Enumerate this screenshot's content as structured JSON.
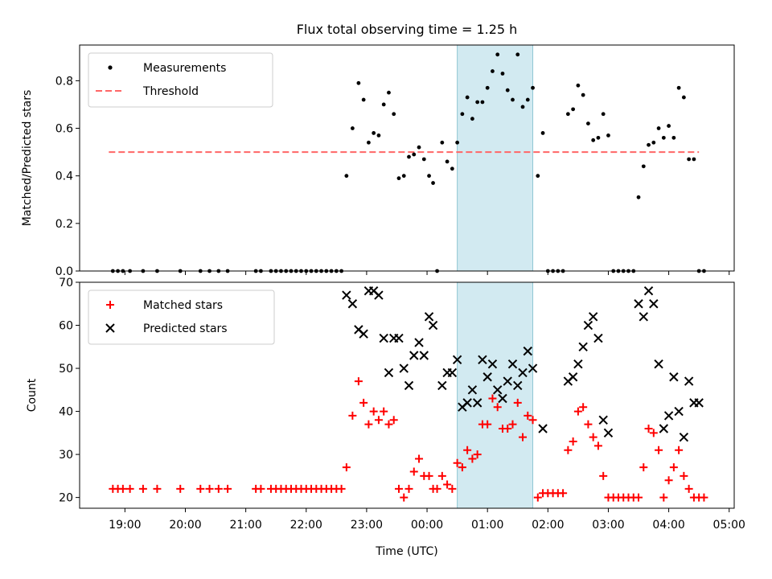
{
  "title": "Flux total observing time = 1.25 h",
  "xlabel": "Time (UTC)",
  "colors": {
    "measurement": "#000000",
    "threshold": "#ff6666",
    "matched": "#ff0000",
    "predicted": "#000000",
    "span": "#add8e6"
  },
  "chart_data": [
    {
      "type": "scatter",
      "panel": "top",
      "ylabel": "Matched/Predicted stars",
      "ylim": [
        0,
        0.95
      ],
      "yticks": [
        0.0,
        0.2,
        0.4,
        0.6,
        0.8
      ],
      "ytick_labels": [
        "0.0",
        "0.2",
        "0.4",
        "0.6",
        "0.8"
      ],
      "legend_position": "upper-left",
      "legend": [
        "Measurements",
        "Threshold"
      ],
      "threshold": {
        "name": "Threshold",
        "y": 0.5,
        "x_start": "18:44",
        "x_end": "04:30"
      },
      "shaded_span": {
        "start": "00:30",
        "end": "01:45"
      },
      "series": [
        {
          "name": "Measurements",
          "x": [
            "18:48",
            "18:53",
            "18:58",
            "19:05",
            "19:18",
            "19:32",
            "19:55",
            "20:15",
            "20:24",
            "20:33",
            "20:42",
            "21:10",
            "21:15",
            "21:25",
            "21:30",
            "21:35",
            "21:40",
            "21:45",
            "21:50",
            "21:55",
            "22:00",
            "22:05",
            "22:10",
            "22:15",
            "22:20",
            "22:25",
            "22:30",
            "22:35",
            "22:40",
            "22:46",
            "22:52",
            "22:57",
            "23:02",
            "23:07",
            "23:12",
            "23:17",
            "23:22",
            "23:27",
            "23:32",
            "23:37",
            "23:42",
            "23:47",
            "23:52",
            "23:57",
            "00:02",
            "00:06",
            "00:10",
            "00:15",
            "00:20",
            "00:25",
            "00:30",
            "00:35",
            "00:40",
            "00:45",
            "00:50",
            "00:55",
            "01:00",
            "01:05",
            "01:10",
            "01:15",
            "01:20",
            "01:25",
            "01:30",
            "01:35",
            "01:40",
            "01:45",
            "01:50",
            "01:55",
            "02:00",
            "02:05",
            "02:10",
            "02:15",
            "02:20",
            "02:25",
            "02:30",
            "02:35",
            "02:40",
            "02:45",
            "02:50",
            "02:55",
            "03:00",
            "03:05",
            "03:10",
            "03:15",
            "03:20",
            "03:25",
            "03:30",
            "03:35",
            "03:40",
            "03:45",
            "03:50",
            "03:55",
            "04:00",
            "04:05",
            "04:10",
            "04:15",
            "04:20",
            "04:25",
            "04:30",
            "04:35"
          ],
          "y": [
            0,
            0,
            0,
            0,
            0,
            0,
            0,
            0,
            0,
            0,
            0,
            0,
            0,
            0,
            0,
            0,
            0,
            0,
            0,
            0,
            0,
            0,
            0,
            0,
            0,
            0,
            0,
            0,
            0.4,
            0.6,
            0.79,
            0.72,
            0.54,
            0.58,
            0.57,
            0.7,
            0.75,
            0.66,
            0.39,
            0.4,
            0.48,
            0.49,
            0.52,
            0.47,
            0.4,
            0.37,
            0.0,
            0.54,
            0.46,
            0.43,
            0.54,
            0.66,
            0.73,
            0.64,
            0.71,
            0.71,
            0.77,
            0.84,
            0.91,
            0.83,
            0.76,
            0.72,
            0.91,
            0.69,
            0.72,
            0.77,
            0.4,
            0.58,
            0,
            0,
            0,
            0,
            0.66,
            0.68,
            0.78,
            0.74,
            0.62,
            0.55,
            0.56,
            0.66,
            0.57,
            0,
            0,
            0,
            0,
            0,
            0.31,
            0.44,
            0.53,
            0.54,
            0.6,
            0.56,
            0.61,
            0.56,
            0.77,
            0.73,
            0.47,
            0.47,
            0,
            0
          ]
        }
      ]
    },
    {
      "type": "scatter",
      "panel": "bottom",
      "ylabel": "Count",
      "ylim": [
        17.5,
        70
      ],
      "yticks": [
        20,
        30,
        40,
        50,
        60,
        70
      ],
      "ytick_labels": [
        "20",
        "30",
        "40",
        "50",
        "60",
        "70"
      ],
      "xlim": [
        "18:15",
        "05:05"
      ],
      "xticks": [
        "19:00",
        "20:00",
        "21:00",
        "22:00",
        "23:00",
        "00:00",
        "01:00",
        "02:00",
        "03:00",
        "04:00",
        "05:00"
      ],
      "legend_position": "upper-left",
      "legend": [
        "Matched stars",
        "Predicted stars"
      ],
      "shaded_span": {
        "start": "00:30",
        "end": "01:45"
      },
      "series": [
        {
          "name": "Matched stars",
          "marker": "+",
          "x": [
            "18:48",
            "18:53",
            "18:58",
            "19:05",
            "19:18",
            "19:32",
            "19:55",
            "20:15",
            "20:24",
            "20:33",
            "20:42",
            "21:10",
            "21:15",
            "21:25",
            "21:30",
            "21:35",
            "21:40",
            "21:45",
            "21:50",
            "21:55",
            "22:00",
            "22:05",
            "22:10",
            "22:15",
            "22:20",
            "22:25",
            "22:30",
            "22:35",
            "22:40",
            "22:46",
            "22:52",
            "22:57",
            "23:02",
            "23:07",
            "23:12",
            "23:17",
            "23:22",
            "23:27",
            "23:32",
            "23:37",
            "23:42",
            "23:47",
            "23:52",
            "23:57",
            "00:02",
            "00:06",
            "00:10",
            "00:15",
            "00:20",
            "00:25",
            "00:30",
            "00:35",
            "00:40",
            "00:45",
            "00:50",
            "00:55",
            "01:00",
            "01:05",
            "01:10",
            "01:15",
            "01:20",
            "01:25",
            "01:30",
            "01:35",
            "01:40",
            "01:45",
            "01:50",
            "01:55",
            "02:00",
            "02:05",
            "02:10",
            "02:15",
            "02:20",
            "02:25",
            "02:30",
            "02:35",
            "02:40",
            "02:45",
            "02:50",
            "02:55",
            "03:00",
            "03:05",
            "03:10",
            "03:15",
            "03:20",
            "03:25",
            "03:30",
            "03:35",
            "03:40",
            "03:45",
            "03:50",
            "03:55",
            "04:00",
            "04:05",
            "04:10",
            "04:15",
            "04:20",
            "04:25",
            "04:30",
            "04:35"
          ],
          "y": [
            22,
            22,
            22,
            22,
            22,
            22,
            22,
            22,
            22,
            22,
            22,
            22,
            22,
            22,
            22,
            22,
            22,
            22,
            22,
            22,
            22,
            22,
            22,
            22,
            22,
            22,
            22,
            22,
            27,
            39,
            47,
            42,
            37,
            40,
            38,
            40,
            37,
            38,
            22,
            20,
            22,
            26,
            29,
            25,
            25,
            22,
            22,
            25,
            23,
            22,
            28,
            27,
            31,
            29,
            30,
            37,
            37,
            43,
            41,
            36,
            36,
            37,
            42,
            34,
            39,
            38,
            20,
            21,
            21,
            21,
            21,
            21,
            31,
            33,
            40,
            41,
            37,
            34,
            32,
            25,
            20,
            20,
            20,
            20,
            20,
            20,
            20,
            27,
            36,
            35,
            31,
            20,
            24,
            27,
            31,
            25,
            22,
            20,
            20,
            20
          ]
        },
        {
          "name": "Predicted stars",
          "marker": "x",
          "x": [
            "22:40",
            "22:46",
            "22:52",
            "22:57",
            "23:02",
            "23:07",
            "23:12",
            "23:17",
            "23:22",
            "23:27",
            "23:32",
            "23:37",
            "23:42",
            "23:47",
            "23:52",
            "23:57",
            "00:02",
            "00:06",
            "00:15",
            "00:20",
            "00:25",
            "00:30",
            "00:35",
            "00:40",
            "00:45",
            "00:50",
            "00:55",
            "01:00",
            "01:05",
            "01:10",
            "01:15",
            "01:20",
            "01:25",
            "01:30",
            "01:35",
            "01:40",
            "01:45",
            "01:55",
            "02:20",
            "02:25",
            "02:30",
            "02:35",
            "02:40",
            "02:45",
            "02:50",
            "02:55",
            "03:00",
            "03:30",
            "03:35",
            "03:40",
            "03:45",
            "03:50",
            "03:55",
            "04:00",
            "04:05",
            "04:10",
            "04:15",
            "04:20",
            "04:25",
            "04:30"
          ],
          "y": [
            67,
            65,
            59,
            58,
            68,
            68,
            67,
            57,
            49,
            57,
            57,
            50,
            46,
            53,
            56,
            53,
            62,
            60,
            46,
            49,
            49,
            52,
            41,
            42,
            45,
            42,
            52,
            48,
            51,
            45,
            43,
            47,
            51,
            46,
            49,
            54,
            50,
            36,
            47,
            48,
            51,
            55,
            60,
            62,
            57,
            38,
            35,
            65,
            62,
            68,
            65,
            51,
            36,
            39,
            48,
            40,
            34,
            47,
            42,
            42
          ]
        }
      ]
    }
  ]
}
